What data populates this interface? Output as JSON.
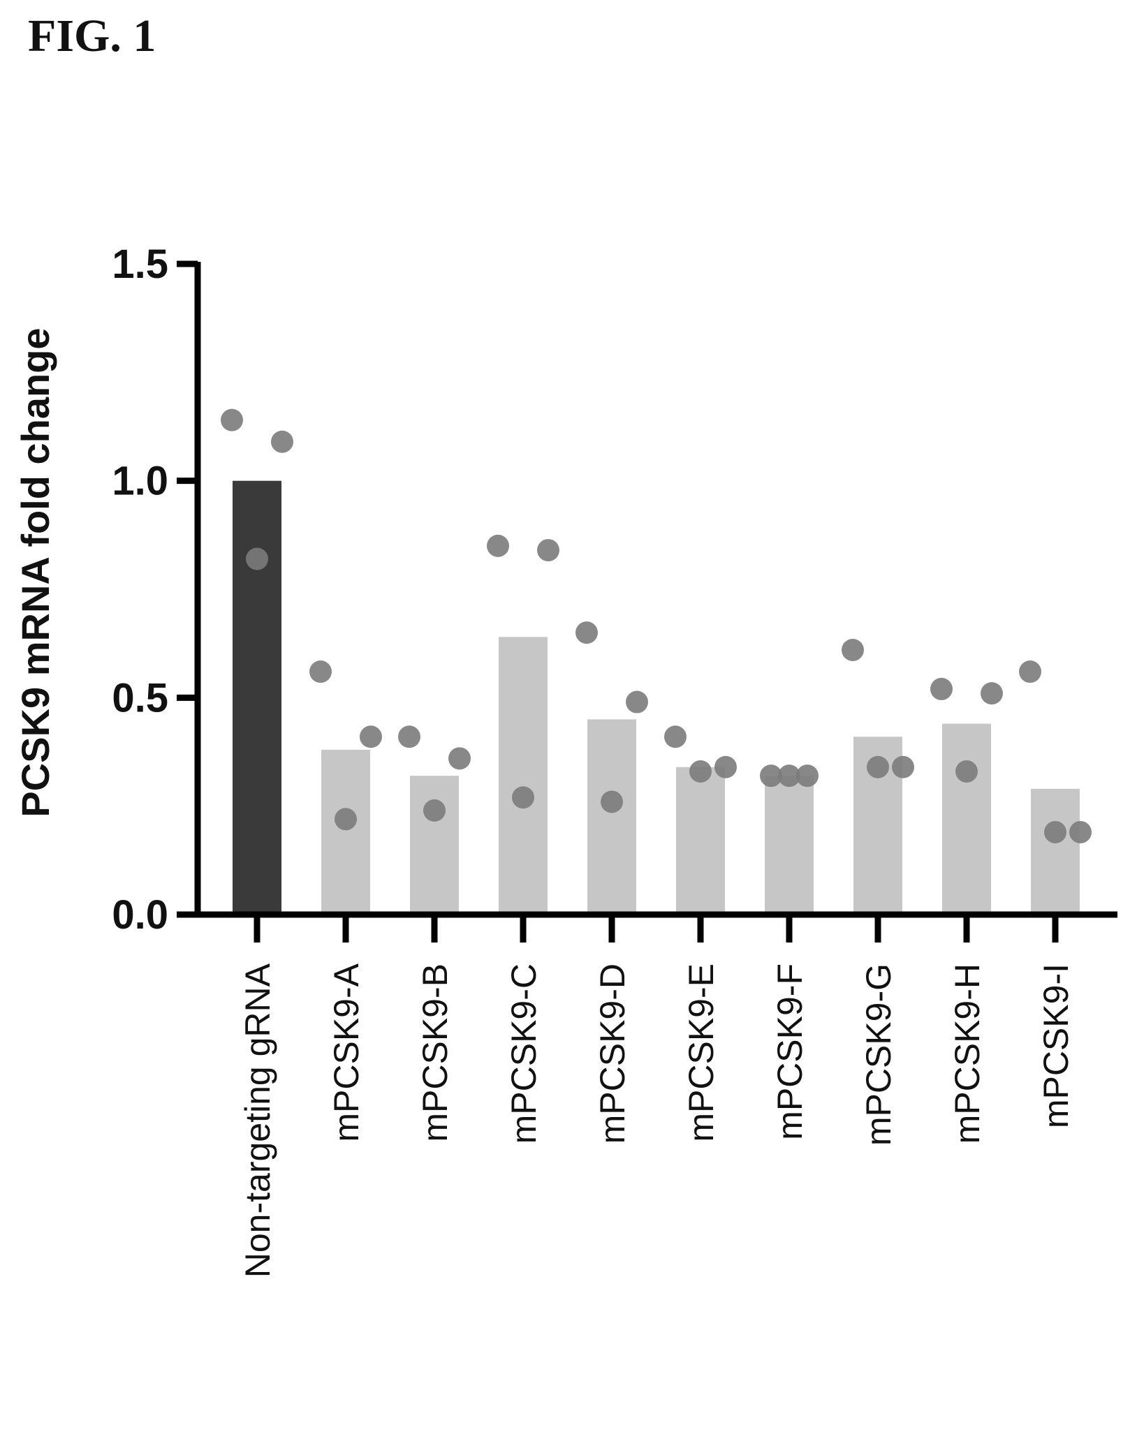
{
  "figure": {
    "label": "FIG. 1"
  },
  "chart_data": {
    "type": "bar",
    "ylabel": "PCSK9 mRNA fold change",
    "xlabel": "",
    "ylim": [
      0,
      1.5
    ],
    "yticks": [
      "0.0",
      "0.5",
      "1.0",
      "1.5"
    ],
    "categories": [
      "Non-targeting gRNA",
      "mPCSK9-A",
      "mPCSK9-B",
      "mPCSK9-C",
      "mPCSK9-D",
      "mPCSK9-E",
      "mPCSK9-F",
      "mPCSK9-G",
      "mPCSK9-H",
      "mPCSK9-I"
    ],
    "values": [
      1.0,
      0.38,
      0.32,
      0.64,
      0.45,
      0.34,
      0.32,
      0.41,
      0.44,
      0.29
    ],
    "points": [
      [
        1.14,
        1.09,
        0.82
      ],
      [
        0.56,
        0.41,
        0.22
      ],
      [
        0.41,
        0.36,
        0.24
      ],
      [
        0.85,
        0.84,
        0.27
      ],
      [
        0.65,
        0.49,
        0.26
      ],
      [
        0.41,
        0.34,
        0.33
      ],
      [
        0.32,
        0.32,
        0.32
      ],
      [
        0.61,
        0.34,
        0.34
      ],
      [
        0.52,
        0.51,
        0.33
      ],
      [
        0.56,
        0.19,
        0.19
      ]
    ],
    "colors": {
      "control_bar": "#3a3a3a",
      "bar": "#c6c6c6",
      "point": "#7b7b7b",
      "axis": "#000000"
    },
    "grid": false,
    "legend": "none"
  }
}
